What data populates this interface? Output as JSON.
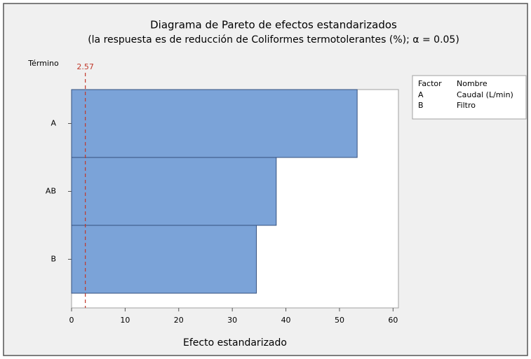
{
  "chart_data": {
    "type": "bar",
    "orientation": "horizontal",
    "title": "Diagrama de Pareto de efectos estandarizados",
    "subtitle": "(la respuesta es de reducción de Coliformes termotolerantes (%); α = 0.05)",
    "ylabel": "Término",
    "xlabel": "Efecto estandarizado",
    "categories": [
      "A",
      "AB",
      "B"
    ],
    "values": [
      53.3,
      38.2,
      34.5
    ],
    "color": "#7ba3d8",
    "edge_color": "#34507e",
    "xlim": [
      0,
      61
    ],
    "xticks": [
      0,
      10,
      20,
      30,
      40,
      50,
      60
    ],
    "reference_line": 2.57,
    "reference_color": "#c0392b",
    "legend": {
      "header": [
        "Factor",
        "Nombre"
      ],
      "rows": [
        [
          "A",
          "Caudal (L/min)"
        ],
        [
          "B",
          "Filtro"
        ]
      ]
    }
  }
}
